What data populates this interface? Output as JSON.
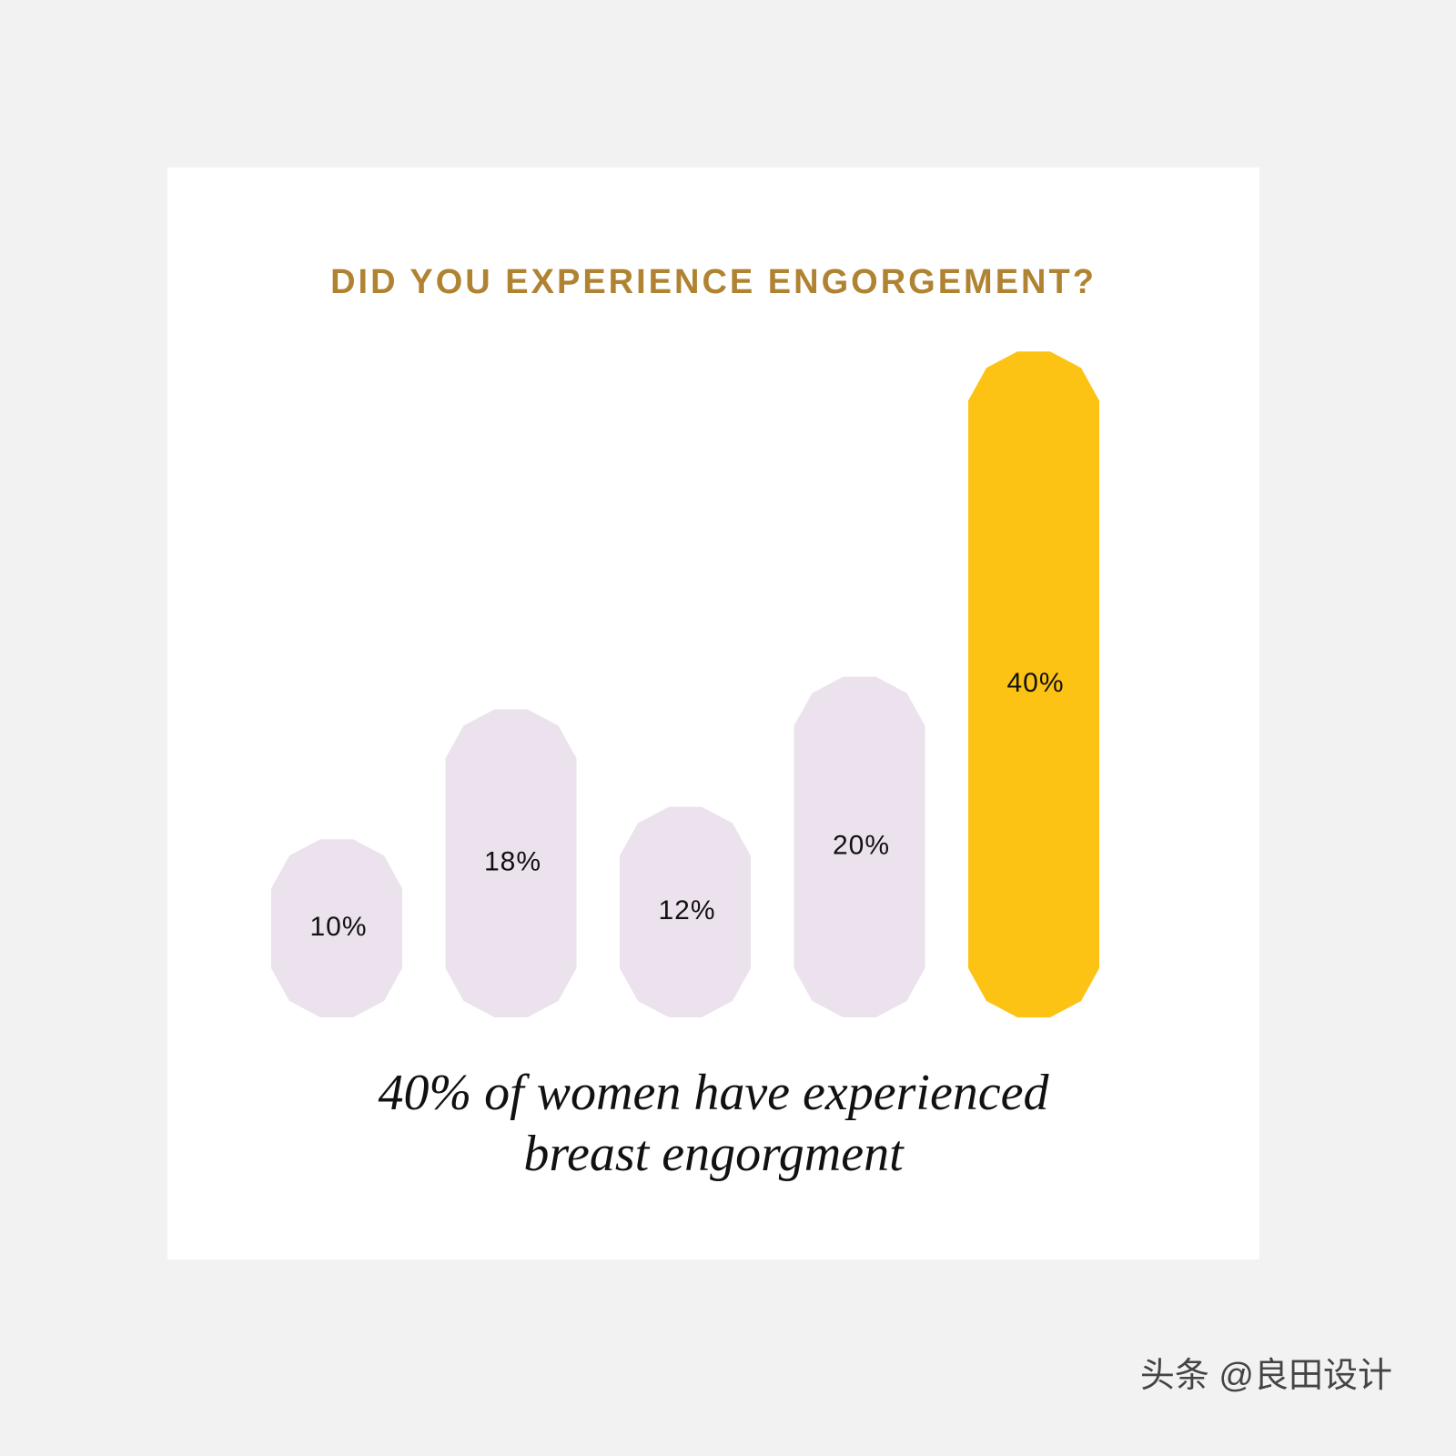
{
  "chart_data": {
    "type": "bar",
    "title": "DID YOU EXPERIENCE ENGORGEMENT?",
    "values": [
      10,
      18,
      12,
      20,
      40
    ],
    "value_labels": [
      "10%",
      "18%",
      "12%",
      "20%",
      "40%"
    ],
    "colors": [
      "#ece2ee",
      "#ece2ee",
      "#ece2ee",
      "#ece2ee",
      "#fdc314"
    ],
    "annotation": [
      "40% of women have experienced",
      "breast engorgment"
    ]
  },
  "watermark": "头条 @良田设计"
}
